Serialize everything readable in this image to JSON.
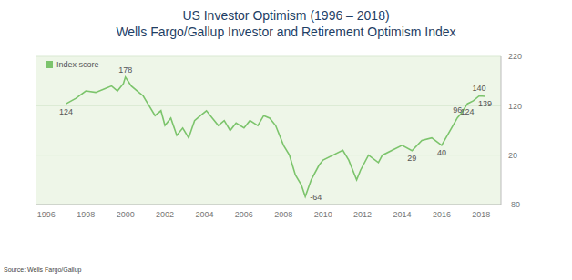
{
  "chart_data": {
    "type": "line",
    "title": "US Investor Optimism (1996 – 2018)",
    "subtitle": "Wells Fargo/Gallup Investor and Retirement Optimism Index",
    "source": "Source: Wells Fargo/Gallup",
    "x": [
      1997.0,
      1997.5,
      1998.0,
      1998.5,
      1999.0,
      1999.3,
      1999.6,
      1999.9,
      2000.0,
      2000.3,
      2000.6,
      2000.9,
      2001.2,
      2001.5,
      2001.8,
      2002.0,
      2002.3,
      2002.6,
      2002.9,
      2003.2,
      2003.5,
      2003.8,
      2004.1,
      2004.4,
      2004.7,
      2005.0,
      2005.3,
      2005.6,
      2006.0,
      2006.3,
      2006.7,
      2007.0,
      2007.3,
      2007.6,
      2008.0,
      2008.3,
      2008.6,
      2008.9,
      2009.1,
      2009.4,
      2009.8,
      2010.0,
      2011.0,
      2011.3,
      2011.7,
      2011.9,
      2012.3,
      2012.8,
      2013.0,
      2013.5,
      2014.0,
      2014.5,
      2015.0,
      2015.5,
      2016.0,
      2016.5,
      2016.8,
      2017.0,
      2017.3,
      2017.6,
      2017.9,
      2018.2
    ],
    "series": [
      {
        "name": "Index score",
        "color": "#7cc46c",
        "values": [
          124,
          135,
          150,
          147,
          155,
          160,
          150,
          165,
          178,
          160,
          150,
          140,
          120,
          100,
          110,
          80,
          95,
          60,
          75,
          55,
          90,
          100,
          110,
          95,
          80,
          90,
          70,
          85,
          75,
          90,
          80,
          100,
          95,
          80,
          40,
          20,
          -20,
          -40,
          -64,
          -30,
          0,
          10,
          30,
          10,
          -30,
          -10,
          20,
          5,
          20,
          30,
          40,
          29,
          50,
          55,
          40,
          75,
          96,
          105,
          124,
          130,
          140,
          139
        ]
      }
    ],
    "xlim": [
      1995.5,
      2019
    ],
    "xticks": [
      1996,
      1998,
      2000,
      2002,
      2004,
      2006,
      2008,
      2010,
      2012,
      2014,
      2016,
      2018
    ],
    "ylim": [
      -80,
      220
    ],
    "yticks": [
      -80,
      20,
      120,
      220
    ],
    "grid": true,
    "legend": "upper left",
    "annotations": [
      {
        "x": 1997.0,
        "value": 124
      },
      {
        "x": 2000.0,
        "value": 178
      },
      {
        "x": 2009.1,
        "value": -64
      },
      {
        "x": 2014.5,
        "value": 29
      },
      {
        "x": 2016.0,
        "value": 40
      },
      {
        "x": 2016.8,
        "value": 96
      },
      {
        "x": 2017.3,
        "value": 124
      },
      {
        "x": 2017.9,
        "value": 140
      },
      {
        "x": 2018.2,
        "value": 139
      }
    ]
  }
}
